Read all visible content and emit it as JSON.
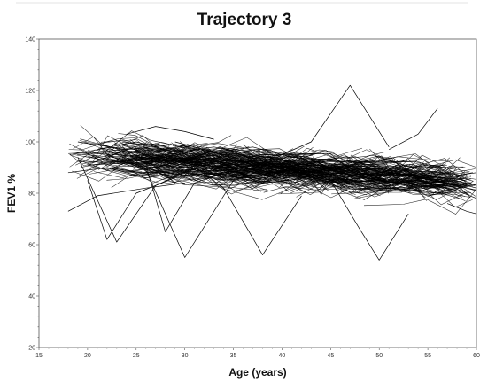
{
  "chart_data": {
    "type": "line",
    "title": "Trajectory 3",
    "xlabel": "Age (years)",
    "ylabel": "FEV1 %",
    "xlim": [
      15,
      60
    ],
    "ylim": [
      20,
      140
    ],
    "x_ticks": [
      15,
      20,
      25,
      30,
      35,
      40,
      45,
      50,
      55,
      60
    ],
    "y_ticks": [
      20,
      40,
      60,
      80,
      100,
      120,
      140
    ],
    "grid": false,
    "legend": "none",
    "colors": {
      "series": "#000000",
      "axis": "#555555",
      "background": "#ffffff"
    },
    "series": [
      {
        "x": [
          18,
          23,
          28,
          33
        ],
        "y": [
          96,
          95,
          93,
          92
        ]
      },
      {
        "x": [
          18,
          22,
          27,
          31,
          36
        ],
        "y": [
          88,
          90,
          87,
          89,
          86
        ]
      },
      {
        "x": [
          19,
          24,
          29,
          34,
          39
        ],
        "y": [
          100,
          97,
          99,
          95,
          94
        ]
      },
      {
        "x": [
          18,
          21,
          26,
          30
        ],
        "y": [
          73,
          79,
          82,
          84
        ]
      },
      {
        "x": [
          20,
          25,
          30,
          35
        ],
        "y": [
          91,
          92,
          90,
          89
        ]
      },
      {
        "x": [
          19,
          22,
          26,
          30,
          33
        ],
        "y": [
          93,
          89,
          95,
          88,
          92
        ]
      },
      {
        "x": [
          20,
          22,
          25,
          29
        ],
        "y": [
          85,
          62,
          80,
          86
        ]
      },
      {
        "x": [
          19,
          23,
          27,
          31
        ],
        "y": [
          94,
          61,
          83,
          90
        ]
      },
      {
        "x": [
          21,
          25,
          29,
          33,
          37
        ],
        "y": [
          97,
          100,
          96,
          98,
          95
        ]
      },
      {
        "x": [
          22,
          26,
          30,
          34,
          38
        ],
        "y": [
          90,
          86,
          88,
          85,
          87
        ]
      },
      {
        "x": [
          22,
          26,
          30,
          35
        ],
        "y": [
          95,
          89,
          55,
          85
        ]
      },
      {
        "x": [
          23,
          27,
          31,
          35,
          40
        ],
        "y": [
          92,
          94,
          91,
          90,
          88
        ]
      },
      {
        "x": [
          24,
          28,
          32,
          36,
          41
        ],
        "y": [
          88,
          91,
          87,
          89,
          85
        ]
      },
      {
        "x": [
          24,
          27,
          30,
          33
        ],
        "y": [
          103,
          106,
          104,
          101
        ]
      },
      {
        "x": [
          25,
          29,
          33,
          37,
          41
        ],
        "y": [
          94,
          92,
          95,
          91,
          90
        ]
      },
      {
        "x": [
          26,
          30,
          34,
          38,
          42
        ],
        "y": [
          89,
          93,
          88,
          90,
          87
        ]
      },
      {
        "x": [
          26,
          28,
          31,
          34
        ],
        "y": [
          91,
          65,
          84,
          88
        ]
      },
      {
        "x": [
          27,
          31,
          35,
          39,
          43
        ],
        "y": [
          95,
          91,
          93,
          89,
          91
        ]
      },
      {
        "x": [
          28,
          33,
          38,
          43
        ],
        "y": [
          86,
          88,
          84,
          86
        ]
      },
      {
        "x": [
          29,
          33,
          37,
          41,
          45
        ],
        "y": [
          100,
          96,
          98,
          94,
          93
        ]
      },
      {
        "x": [
          30,
          34,
          39,
          44
        ],
        "y": [
          90,
          92,
          88,
          89
        ]
      },
      {
        "x": [
          30,
          34,
          38,
          42
        ],
        "y": [
          93,
          82,
          56,
          79
        ]
      },
      {
        "x": [
          31,
          35,
          39,
          43,
          47
        ],
        "y": [
          92,
          89,
          91,
          87,
          88
        ]
      },
      {
        "x": [
          32,
          36,
          40,
          44,
          48
        ],
        "y": [
          97,
          93,
          95,
          92,
          90
        ]
      },
      {
        "x": [
          33,
          37,
          41,
          45
        ],
        "y": [
          88,
          86,
          89,
          84
        ]
      },
      {
        "x": [
          34,
          38,
          42,
          46,
          50
        ],
        "y": [
          93,
          91,
          88,
          90,
          86
        ]
      },
      {
        "x": [
          35,
          39,
          43,
          47,
          51
        ],
        "y": [
          90,
          92,
          87,
          88,
          85
        ]
      },
      {
        "x": [
          36,
          40,
          44,
          48
        ],
        "y": [
          95,
          90,
          92,
          88
        ]
      },
      {
        "x": [
          37,
          41,
          45,
          49,
          53
        ],
        "y": [
          87,
          89,
          85,
          86,
          83
        ]
      },
      {
        "x": [
          38,
          43,
          47,
          52
        ],
        "y": [
          92,
          88,
          90,
          86
        ]
      },
      {
        "x": [
          40,
          43,
          47,
          51
        ],
        "y": [
          95,
          100,
          122,
          98
        ]
      },
      {
        "x": [
          40,
          44,
          48,
          52,
          56
        ],
        "y": [
          89,
          86,
          88,
          84,
          85
        ]
      },
      {
        "x": [
          41,
          45,
          49,
          53
        ],
        "y": [
          93,
          90,
          87,
          89
        ]
      },
      {
        "x": [
          42,
          46,
          50,
          54,
          58
        ],
        "y": [
          86,
          88,
          84,
          85,
          82
        ]
      },
      {
        "x": [
          44,
          48,
          52,
          56
        ],
        "y": [
          91,
          87,
          89,
          85
        ]
      },
      {
        "x": [
          45,
          48,
          50,
          53
        ],
        "y": [
          85,
          66,
          54,
          72
        ]
      },
      {
        "x": [
          46,
          50,
          54,
          58
        ],
        "y": [
          88,
          85,
          86,
          83
        ]
      },
      {
        "x": [
          47,
          51,
          55,
          59
        ],
        "y": [
          84,
          86,
          82,
          84
        ]
      },
      {
        "x": [
          48,
          52,
          56
        ],
        "y": [
          90,
          87,
          88
        ]
      },
      {
        "x": [
          49,
          53,
          57,
          60
        ],
        "y": [
          86,
          83,
          85,
          82
        ]
      },
      {
        "x": [
          50,
          54,
          58
        ],
        "y": [
          83,
          85,
          81
        ]
      },
      {
        "x": [
          51,
          54,
          56
        ],
        "y": [
          97,
          103,
          113
        ]
      },
      {
        "x": [
          52,
          55,
          58,
          60
        ],
        "y": [
          88,
          84,
          86,
          83
        ]
      },
      {
        "x": [
          53,
          56,
          59
        ],
        "y": [
          82,
          80,
          83
        ]
      },
      {
        "x": [
          54,
          57,
          60
        ],
        "y": [
          86,
          84,
          81
        ]
      },
      {
        "x": [
          55,
          58,
          60
        ],
        "y": [
          79,
          81,
          78
        ]
      },
      {
        "x": [
          56,
          58,
          60
        ],
        "y": [
          90,
          87,
          88
        ]
      },
      {
        "x": [
          57,
          59,
          60
        ],
        "y": [
          76,
          73,
          72
        ]
      }
    ]
  }
}
